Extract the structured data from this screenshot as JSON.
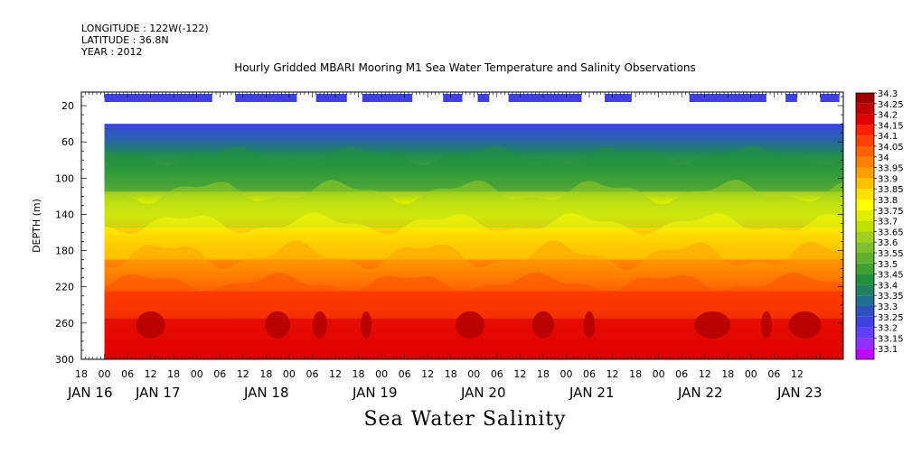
{
  "header": {
    "longitude": "LONGITUDE : 122W(-122)",
    "latitude": "LATITUDE : 36.8N",
    "year": "YEAR : 2012"
  },
  "chart_data": {
    "type": "heatmap",
    "title": "Hourly Gridded MBARI Mooring M1 Sea Water Temperature and Salinity Observations",
    "xlabel": "Sea Water Salinity",
    "ylabel": "DEPTH (m)",
    "x_hour_ticks": [
      "18",
      "00",
      "06",
      "12",
      "18",
      "00",
      "06",
      "12",
      "18",
      "00",
      "06",
      "12",
      "18",
      "00",
      "06",
      "12",
      "18",
      "00",
      "06",
      "12",
      "18",
      "00",
      "06",
      "12",
      "18",
      "00",
      "06",
      "12",
      "18",
      "00",
      "06",
      "12"
    ],
    "x_day_labels": [
      "JAN 16",
      "JAN 17",
      "JAN 18",
      "JAN 19",
      "JAN 20",
      "JAN 21",
      "JAN 22",
      "JAN 23"
    ],
    "y_ticks": [
      20,
      60,
      100,
      140,
      180,
      220,
      260,
      300
    ],
    "ylim": [
      300,
      5
    ],
    "data_top_depth": 40,
    "colorbar_levels": [
      "34.3",
      "34.25",
      "34.2",
      "34.15",
      "34.1",
      "34.05",
      "34",
      "33.95",
      "33.9",
      "33.85",
      "33.8",
      "33.75",
      "33.7",
      "33.65",
      "33.6",
      "33.55",
      "33.5",
      "33.45",
      "33.4",
      "33.35",
      "33.3",
      "33.25",
      "33.2",
      "33.15",
      "33.1"
    ],
    "colorbar_colors": [
      "#a00000",
      "#c00000",
      "#e00000",
      "#ff2000",
      "#ff4000",
      "#ff6000",
      "#ff8000",
      "#ffa000",
      "#ffc000",
      "#ffe000",
      "#ffff00",
      "#e0ee00",
      "#c0e000",
      "#a0d020",
      "#80c030",
      "#60b030",
      "#40a030",
      "#209040",
      "#208060",
      "#207090",
      "#3050c0",
      "#4040e0",
      "#6040ff",
      "#9030ff",
      "#c000ff"
    ],
    "coverage_segments_hours": [
      [
        0,
        28
      ],
      [
        34,
        50
      ],
      [
        55,
        63
      ],
      [
        67,
        80
      ],
      [
        88,
        93
      ],
      [
        97,
        100
      ],
      [
        105,
        124
      ],
      [
        130,
        137
      ],
      [
        152,
        172
      ],
      [
        177,
        180
      ],
      [
        186,
        191
      ]
    ],
    "time_range_hours": [
      -6,
      192
    ]
  }
}
